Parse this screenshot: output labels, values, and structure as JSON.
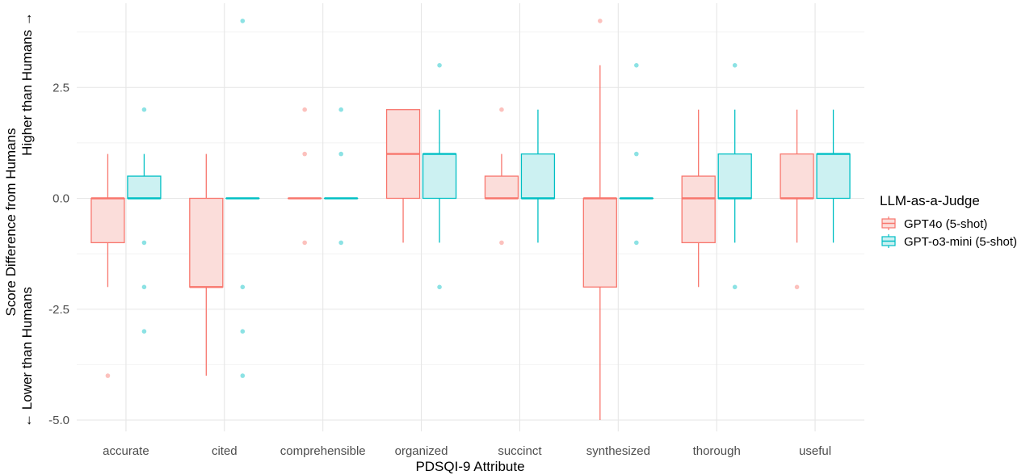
{
  "chart_data": {
    "type": "box",
    "xlabel": "PDSQI-9 Attribute",
    "ylabel_line1": "Score Difference from Humans",
    "ylabel_upper": "Higher than Humans →",
    "ylabel_lower": "← Lower than Humans",
    "ylim": [
      -5.2,
      4.4
    ],
    "yticks": [
      "-5.0",
      "-2.5",
      "0.0",
      "2.5"
    ],
    "categories": [
      "accurate",
      "cited",
      "comprehensible",
      "organized",
      "succinct",
      "synthesized",
      "thorough",
      "useful"
    ],
    "grid": true,
    "legend": {
      "title": "LLM-as-a-Judge",
      "position": "right"
    },
    "series": [
      {
        "name": "GPT4o (5-shot)",
        "color": "#F8766D",
        "fill": "#FBDDDA",
        "boxes": [
          {
            "category": "accurate",
            "lower_whisker": -2,
            "q1": -1,
            "median": 0,
            "q3": 0,
            "upper_whisker": 1,
            "outliers": [
              -4
            ]
          },
          {
            "category": "cited",
            "lower_whisker": -4,
            "q1": -2,
            "median": -2,
            "q3": 0,
            "upper_whisker": 1,
            "outliers": []
          },
          {
            "category": "comprehensible",
            "lower_whisker": 0,
            "q1": 0,
            "median": 0,
            "q3": 0,
            "upper_whisker": 0,
            "outliers": [
              2,
              1,
              -1
            ]
          },
          {
            "category": "organized",
            "lower_whisker": -1,
            "q1": 0,
            "median": 1,
            "q3": 2,
            "upper_whisker": 2,
            "outliers": []
          },
          {
            "category": "succinct",
            "lower_whisker": 0,
            "q1": 0,
            "median": 0,
            "q3": 0.5,
            "upper_whisker": 1,
            "outliers": [
              2,
              -1
            ]
          },
          {
            "category": "synthesized",
            "lower_whisker": -5,
            "q1": -2,
            "median": 0,
            "q3": 0,
            "upper_whisker": 3,
            "outliers": [
              4
            ]
          },
          {
            "category": "thorough",
            "lower_whisker": -2,
            "q1": -1,
            "median": 0,
            "q3": 0.5,
            "upper_whisker": 2,
            "outliers": []
          },
          {
            "category": "useful",
            "lower_whisker": -1,
            "q1": 0,
            "median": 0,
            "q3": 1,
            "upper_whisker": 2,
            "outliers": [
              -2
            ]
          }
        ]
      },
      {
        "name": "GPT-o3-mini (5-shot)",
        "color": "#00BFC4",
        "fill": "#CCF1F2",
        "boxes": [
          {
            "category": "accurate",
            "lower_whisker": 0,
            "q1": 0,
            "median": 0,
            "q3": 0.5,
            "upper_whisker": 1,
            "outliers": [
              2,
              -1,
              -2,
              -3
            ]
          },
          {
            "category": "cited",
            "lower_whisker": 0,
            "q1": 0,
            "median": 0,
            "q3": 0,
            "upper_whisker": 0,
            "outliers": [
              4,
              -2,
              -3,
              -4
            ]
          },
          {
            "category": "comprehensible",
            "lower_whisker": 0,
            "q1": 0,
            "median": 0,
            "q3": 0,
            "upper_whisker": 0,
            "outliers": [
              2,
              1,
              -1
            ]
          },
          {
            "category": "organized",
            "lower_whisker": -1,
            "q1": 0,
            "median": 1,
            "q3": 1,
            "upper_whisker": 2,
            "outliers": [
              3,
              -2
            ]
          },
          {
            "category": "succinct",
            "lower_whisker": -1,
            "q1": 0,
            "median": 0,
            "q3": 1,
            "upper_whisker": 2,
            "outliers": []
          },
          {
            "category": "synthesized",
            "lower_whisker": 0,
            "q1": 0,
            "median": 0,
            "q3": 0,
            "upper_whisker": 0,
            "outliers": [
              3,
              1,
              -1
            ]
          },
          {
            "category": "thorough",
            "lower_whisker": -1,
            "q1": 0,
            "median": 0,
            "q3": 1,
            "upper_whisker": 2,
            "outliers": [
              3,
              -2
            ]
          },
          {
            "category": "useful",
            "lower_whisker": -1,
            "q1": 0,
            "median": 1,
            "q3": 1,
            "upper_whisker": 2,
            "outliers": []
          }
        ]
      }
    ]
  }
}
